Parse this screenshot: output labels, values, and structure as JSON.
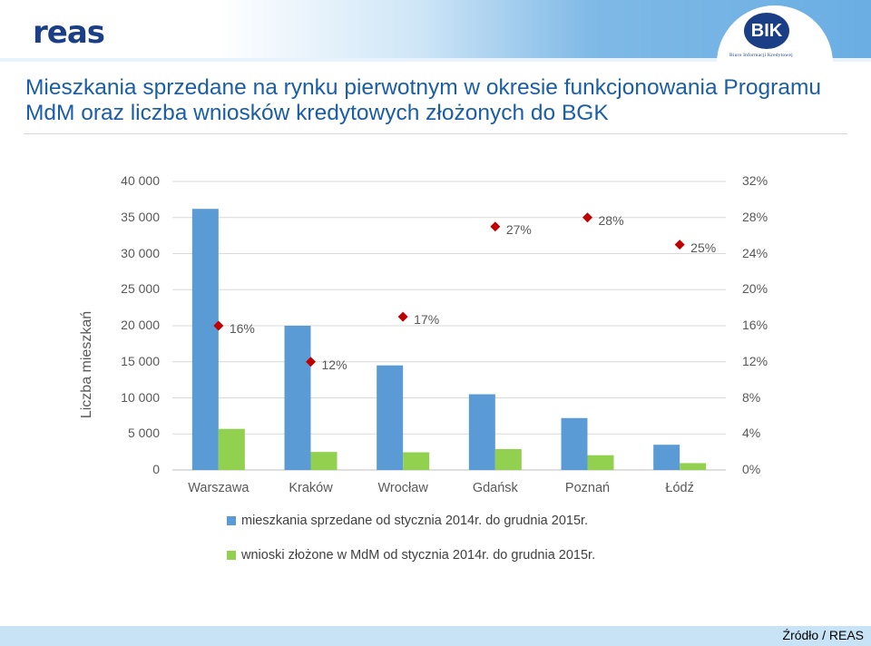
{
  "header": {
    "logo_text": "reas",
    "bik_logo_text": "BIK",
    "bik_subtitle": "Biuro Informacji Kredytowej"
  },
  "title": "Mieszkania sprzedane na rynku pierwotnym w okresie funkcjonowania Programu MdM oraz liczba wniosków kredytowych złożonych do BGK",
  "source": "Źródło / REAS",
  "chart_data": {
    "type": "bar",
    "categories": [
      "Warszawa",
      "Kraków",
      "Wrocław",
      "Gdańsk",
      "Poznań",
      "Łódź"
    ],
    "series": [
      {
        "name": "mieszkania sprzedane od stycznia 2014r. do grudnia 2015r.",
        "kind": "bar",
        "axis": "left",
        "color": "#5b9bd5",
        "values": [
          36200,
          20000,
          14500,
          10500,
          7200,
          3500
        ]
      },
      {
        "name": "wnioski złożone w MdM od stycznia 2014r. do grudnia 2015r.",
        "kind": "bar",
        "axis": "left",
        "color": "#92d050",
        "values": [
          5700,
          2500,
          2450,
          2900,
          2050,
          950
        ]
      },
      {
        "name": "",
        "kind": "marker",
        "axis": "right",
        "color": "#c00000",
        "values": [
          0.16,
          0.12,
          0.17,
          0.27,
          0.28,
          0.25
        ],
        "labels": [
          "16%",
          "12%",
          "17%",
          "27%",
          "28%",
          "25%"
        ]
      }
    ],
    "ylabel": "Liczba mieszkań",
    "ylim": [
      0,
      40000
    ],
    "y2lim": [
      0,
      0.32
    ],
    "yticks": [
      "0",
      "5 000",
      "10 000",
      "15 000",
      "20 000",
      "25 000",
      "30 000",
      "35 000",
      "40 000"
    ],
    "y2ticks": [
      "0%",
      "4%",
      "8%",
      "12%",
      "16%",
      "20%",
      "24%",
      "28%",
      "32%"
    ],
    "grid": true,
    "legend_position": "bottom"
  }
}
